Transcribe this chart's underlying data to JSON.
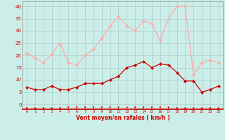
{
  "hours": [
    0,
    1,
    2,
    3,
    4,
    5,
    6,
    7,
    8,
    9,
    10,
    11,
    12,
    13,
    14,
    15,
    16,
    17,
    18,
    19,
    20,
    21,
    22,
    23
  ],
  "wind_avg": [
    7,
    6,
    6,
    7.5,
    6,
    6,
    7,
    8.5,
    8.5,
    8.5,
    10,
    11.5,
    15,
    16,
    17.5,
    15,
    16.5,
    16,
    13,
    9.5,
    9.5,
    5,
    6,
    7.5
  ],
  "wind_gust": [
    21,
    19,
    17,
    20.5,
    25,
    17,
    16,
    20,
    22.5,
    27,
    32,
    36,
    32,
    30,
    34,
    33,
    26,
    35,
    40,
    40,
    12,
    17,
    18,
    17
  ],
  "avg_color": "#cc0000",
  "gust_color": "#ffaaaa",
  "bg_color": "#cceee8",
  "grid_color": "#aacccc",
  "xlabel": "Vent moyen/en rafales ( km/h )",
  "xlabel_color": "#cc0000",
  "tick_color": "#cc0000",
  "ylim": [
    -2,
    42
  ],
  "yticks": [
    0,
    5,
    10,
    15,
    20,
    25,
    30,
    35,
    40
  ],
  "arrow_angles": [
    45,
    45,
    45,
    45,
    45,
    0,
    0,
    0,
    0,
    0,
    0,
    0,
    350,
    0,
    0,
    0,
    0,
    0,
    45,
    45,
    315,
    315,
    315,
    315
  ]
}
